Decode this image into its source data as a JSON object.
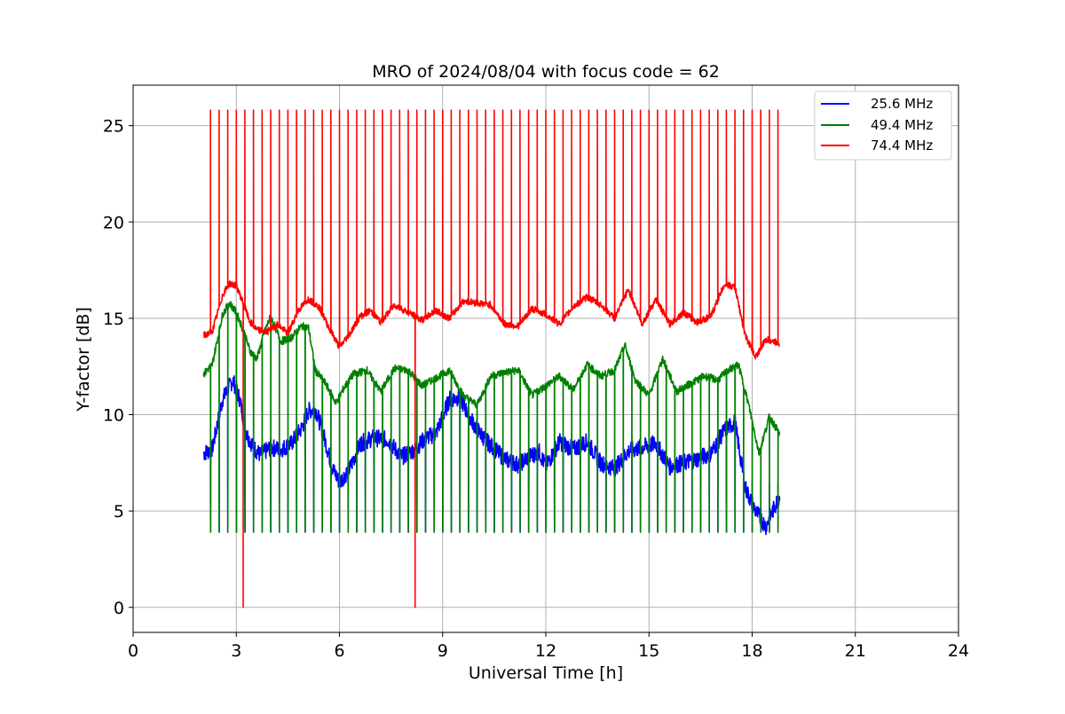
{
  "chart_data": {
    "type": "line",
    "title": "MRO of 2024/08/04 with focus code = 62",
    "xlabel": "Universal Time [h]",
    "ylabel": "Y-factor [dB]",
    "xlim": [
      0,
      24
    ],
    "ylim": [
      -1.3,
      27.1
    ],
    "xticks": [
      0,
      3,
      6,
      9,
      12,
      15,
      18,
      21,
      24
    ],
    "yticks": [
      0,
      5,
      10,
      15,
      20,
      25
    ],
    "grid": true,
    "legend_position": "top-right",
    "pulse_interval_h": 0.25,
    "pulse_peak_db": 25.8,
    "pulse_dip_db": {
      "25.6 MHz": 3.9,
      "49.4 MHz": 3.9
    },
    "dropouts_h": [
      3.2,
      8.2
    ],
    "series": [
      {
        "name": "25.6 MHz",
        "color": "#0000ff",
        "x": [
          2.05,
          2.3,
          2.6,
          2.9,
          3.1,
          3.3,
          3.5,
          3.7,
          4.0,
          4.3,
          4.6,
          4.9,
          5.1,
          5.3,
          5.5,
          5.8,
          6.0,
          6.3,
          6.6,
          7.0,
          7.4,
          7.8,
          8.2,
          8.5,
          8.8,
          9.2,
          9.5,
          9.8,
          10.1,
          10.4,
          10.8,
          11.2,
          11.5,
          11.8,
          12.0,
          12.4,
          12.8,
          13.2,
          13.6,
          14.0,
          14.4,
          14.8,
          15.2,
          15.6,
          16.0,
          16.4,
          16.8,
          17.2,
          17.5,
          17.8,
          18.1,
          18.4,
          18.8
        ],
        "y": [
          8.0,
          8.2,
          10.8,
          11.8,
          10.8,
          9.0,
          8.3,
          7.9,
          8.3,
          8.2,
          8.5,
          9.3,
          10.2,
          10.3,
          9.2,
          7.2,
          6.5,
          7.2,
          8.5,
          8.8,
          8.7,
          7.8,
          8.2,
          8.8,
          9.0,
          10.8,
          10.9,
          9.8,
          9.0,
          8.4,
          7.7,
          7.4,
          7.8,
          8.1,
          7.3,
          8.6,
          8.2,
          8.6,
          7.5,
          7.2,
          8.1,
          8.3,
          8.5,
          7.3,
          7.5,
          7.7,
          8.0,
          9.2,
          9.6,
          6.2,
          5.0,
          4.2,
          5.8
        ]
      },
      {
        "name": "49.4 MHz",
        "color": "#008000",
        "x": [
          2.05,
          2.3,
          2.6,
          2.8,
          3.0,
          3.2,
          3.4,
          3.6,
          3.8,
          4.0,
          4.3,
          4.6,
          4.9,
          5.1,
          5.3,
          5.6,
          5.9,
          6.1,
          6.4,
          6.8,
          7.2,
          7.6,
          8.0,
          8.4,
          8.8,
          9.2,
          9.6,
          10.0,
          10.4,
          10.8,
          11.2,
          11.6,
          12.0,
          12.4,
          12.8,
          13.2,
          13.6,
          14.0,
          14.3,
          14.6,
          15.0,
          15.4,
          15.8,
          16.2,
          16.6,
          17.0,
          17.3,
          17.6,
          17.9,
          18.2,
          18.5,
          18.8
        ],
        "y": [
          12.1,
          12.6,
          15.2,
          15.8,
          15.3,
          14.4,
          13.3,
          12.9,
          14.2,
          15.1,
          13.8,
          14.0,
          14.6,
          14.5,
          12.3,
          11.6,
          10.6,
          11.3,
          12.1,
          12.3,
          11.2,
          12.4,
          12.3,
          11.5,
          11.9,
          12.3,
          11.0,
          10.5,
          12.0,
          12.2,
          12.3,
          11.0,
          11.5,
          12.0,
          11.3,
          12.6,
          12.0,
          12.3,
          13.6,
          11.8,
          11.0,
          12.9,
          11.2,
          11.6,
          12.0,
          11.8,
          12.3,
          12.6,
          10.5,
          8.0,
          9.9,
          9.0
        ]
      },
      {
        "name": "74.4 MHz",
        "color": "#ff0000",
        "x": [
          2.05,
          2.3,
          2.6,
          2.8,
          3.0,
          3.2,
          3.4,
          3.6,
          3.9,
          4.2,
          4.5,
          4.8,
          5.1,
          5.4,
          5.7,
          6.0,
          6.3,
          6.6,
          6.9,
          7.2,
          7.6,
          8.0,
          8.4,
          8.8,
          9.2,
          9.6,
          10.0,
          10.4,
          10.8,
          11.2,
          11.6,
          12.0,
          12.4,
          12.8,
          13.2,
          13.6,
          14.0,
          14.4,
          14.8,
          15.2,
          15.6,
          16.0,
          16.4,
          16.8,
          17.2,
          17.5,
          17.8,
          18.1,
          18.4,
          18.8
        ],
        "y": [
          14.1,
          14.3,
          16.2,
          16.8,
          16.7,
          15.8,
          14.8,
          14.4,
          14.3,
          14.7,
          14.2,
          15.4,
          16.0,
          15.6,
          14.5,
          13.5,
          14.2,
          15.1,
          15.4,
          14.8,
          15.7,
          15.3,
          14.9,
          15.4,
          15.0,
          15.9,
          15.8,
          15.7,
          14.7,
          14.6,
          15.5,
          15.2,
          14.7,
          15.6,
          16.1,
          15.7,
          15.0,
          16.5,
          14.7,
          16.0,
          14.7,
          15.3,
          14.8,
          15.1,
          16.8,
          16.6,
          14.1,
          13.0,
          13.9,
          13.7
        ]
      }
    ]
  }
}
